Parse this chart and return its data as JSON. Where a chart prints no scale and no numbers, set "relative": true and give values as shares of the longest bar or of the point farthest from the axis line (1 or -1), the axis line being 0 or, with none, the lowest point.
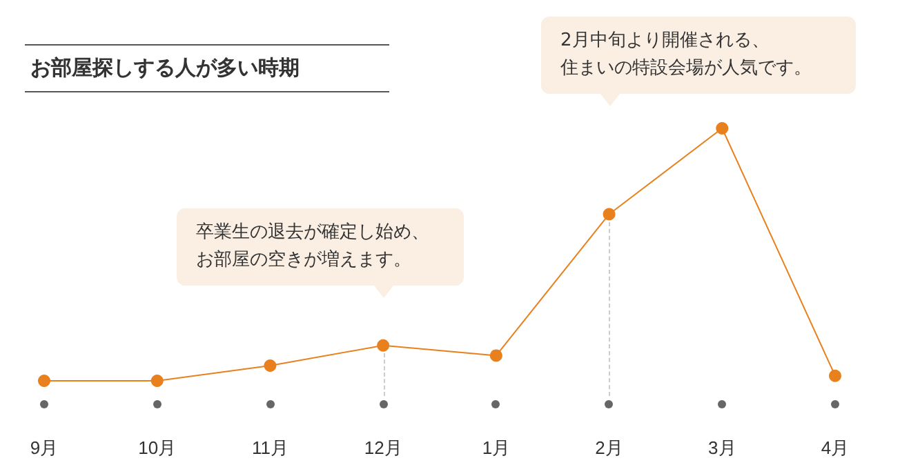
{
  "chart_data": {
    "type": "line",
    "title": "お部屋探しする人が多い時期",
    "relative": true,
    "categories": [
      "9月",
      "10月",
      "11月",
      "12月",
      "1月",
      "2月",
      "3月",
      "4月"
    ],
    "series": [
      {
        "color": "#e8801e",
        "values": [
          0,
          0,
          0.06,
          0.14,
          0.1,
          0.66,
          1,
          0.02
        ]
      }
    ],
    "marker": "circle",
    "grid": false,
    "ref_lines": [
      {
        "axis": "x",
        "value": "12月",
        "color": "#cccccc",
        "line_style": "dashed"
      },
      {
        "axis": "x",
        "value": "2月",
        "color": "#cccccc",
        "line_style": "dashed"
      }
    ],
    "annotations": [
      "卒業生の退去が確定し始め、お部屋の空きが増えます。",
      "2月中旬より開催される、住まいの特設会場が人気です。"
    ]
  }
}
